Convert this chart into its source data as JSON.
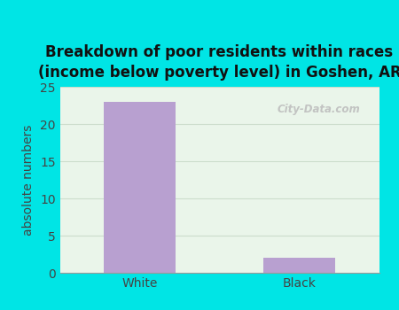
{
  "categories": [
    "White",
    "Black"
  ],
  "values": [
    23,
    2
  ],
  "bar_color": "#b8a0d0",
  "title": "Breakdown of poor residents within races\n(income below poverty level) in Goshen, AR",
  "ylabel": "absolute numbers",
  "ylim": [
    0,
    25
  ],
  "yticks": [
    0,
    5,
    10,
    15,
    20,
    25
  ],
  "bg_outer": "#00e5e5",
  "bg_inner": "#eaf5ea",
  "title_fontsize": 12,
  "tick_fontsize": 10,
  "ylabel_fontsize": 10,
  "watermark": "City-Data.com",
  "grid_color": "#ccddcc"
}
